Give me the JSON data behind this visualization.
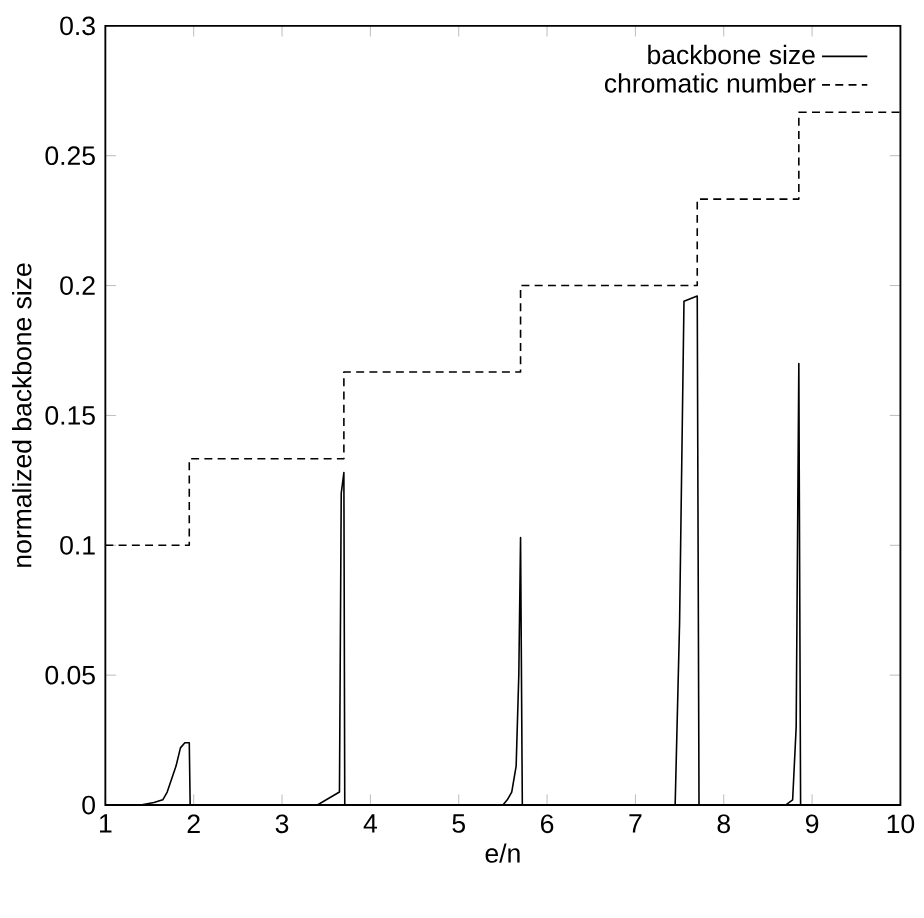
{
  "chart_data": {
    "type": "line",
    "xlabel": "e/n",
    "ylabel": "normalized backbone size",
    "xlim": [
      1,
      10
    ],
    "ylim": [
      0,
      0.3
    ],
    "xticks": [
      1,
      2,
      3,
      4,
      5,
      6,
      7,
      8,
      9,
      10
    ],
    "yticks": [
      0,
      0.05,
      0.1,
      0.15,
      0.2,
      0.25,
      0.3
    ],
    "grid": false,
    "legend": "top right",
    "series": [
      {
        "name": "backbone size",
        "color": "#000000",
        "line_style": "solid",
        "x": [
          1,
          1.4,
          1.55,
          1.65,
          1.7,
          1.8,
          1.85,
          1.9,
          1.95,
          1.96,
          3.4,
          3.5,
          3.6,
          3.65,
          3.67,
          3.7,
          3.71,
          5.5,
          5.55,
          5.6,
          5.65,
          5.68,
          5.7,
          5.72,
          7.45,
          7.5,
          7.55,
          7.7,
          7.72,
          8.7,
          8.78,
          8.82,
          8.85,
          8.87,
          10
        ],
        "values": [
          0,
          0,
          0.001,
          0.002,
          0.005,
          0.015,
          0.022,
          0.024,
          0.024,
          0,
          0,
          0.002,
          0.004,
          0.005,
          0.12,
          0.128,
          0,
          0,
          0.002,
          0.005,
          0.015,
          0.05,
          0.103,
          0,
          0,
          0.07,
          0.194,
          0.196,
          0,
          0,
          0.002,
          0.03,
          0.17,
          0,
          0
        ]
      },
      {
        "name": "chromatic number",
        "type": "step",
        "color": "#000000",
        "line_style": "dashed",
        "x": [
          1,
          1.95,
          3.7,
          5.7,
          7.7,
          8.85,
          10
        ],
        "values": [
          0.1,
          0.1333,
          0.1667,
          0.2,
          0.2333,
          0.2667,
          0.2667
        ]
      }
    ]
  }
}
